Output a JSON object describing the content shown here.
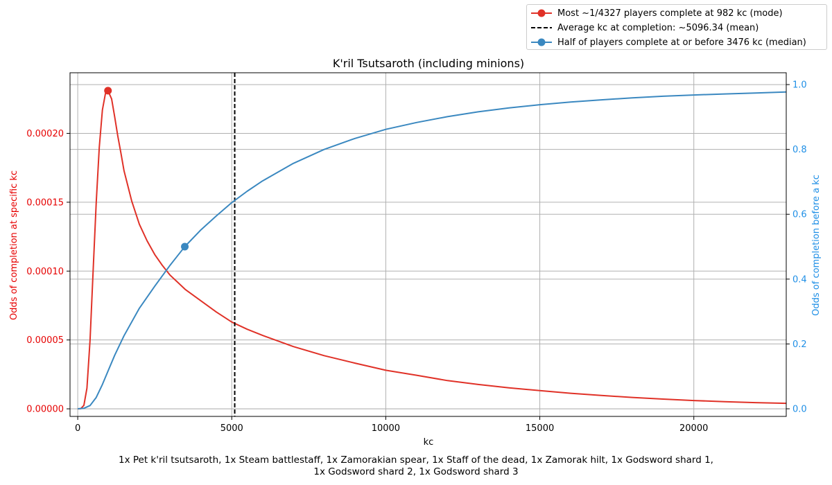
{
  "chart_data": {
    "type": "line",
    "title": "K'ril Tsutsaroth (including minions)",
    "xlabel": "kc",
    "ylabel_left": "Odds of completion at specific kc",
    "ylabel_right": "Odds of completion before a kc",
    "xlim": [
      -250,
      23000
    ],
    "ylim_left": [
      -5.5e-06,
      0.000244
    ],
    "ylim_right": [
      -0.0235,
      1.0365
    ],
    "x_ticks": [
      0,
      5000,
      10000,
      15000,
      20000
    ],
    "x_tick_labels": [
      "0",
      "5000",
      "10000",
      "15000",
      "20000"
    ],
    "y_left_ticks": [
      0,
      5e-05,
      0.0001,
      0.00015,
      0.0002
    ],
    "y_left_tick_labels": [
      "0.00000",
      "0.00005",
      "0.00010",
      "0.00015",
      "0.00020"
    ],
    "y_right_ticks": [
      0,
      0.2,
      0.4,
      0.6,
      0.8,
      1.0
    ],
    "y_right_tick_labels": [
      "0.0",
      "0.2",
      "0.4",
      "0.6",
      "0.8",
      "1.0"
    ],
    "grid": true,
    "legend_position": "top-right, outside plot",
    "series": [
      {
        "name": "Most ~1/4327 players complete at 982 kc (mode)",
        "axis": "left",
        "color": "#e03127",
        "x": [
          0,
          100,
          200,
          300,
          400,
          500,
          600,
          700,
          800,
          900,
          982,
          1100,
          1200,
          1300,
          1400,
          1500,
          1750,
          2000,
          2250,
          2500,
          2750,
          3000,
          3500,
          4000,
          4500,
          5000,
          5500,
          6000,
          7000,
          8000,
          9000,
          10000,
          11000,
          12000,
          13000,
          14000,
          15000,
          16000,
          17000,
          18000,
          19000,
          20000,
          21000,
          22000,
          23000
        ],
        "y": [
          0,
          2e-07,
          2.5e-06,
          1.5e-05,
          5e-05,
          0.0001,
          0.00015,
          0.00019,
          0.000217,
          0.000229,
          0.000231,
          0.000225,
          0.000212,
          0.000198,
          0.000186,
          0.000173,
          0.000151,
          0.000134,
          0.000122,
          0.000112,
          0.000104,
          9.7e-05,
          8.65e-05,
          7.84e-05,
          7.03e-05,
          6.3e-05,
          5.78e-05,
          5.33e-05,
          4.52e-05,
          3.86e-05,
          3.32e-05,
          2.8e-05,
          2.44e-05,
          2.05e-05,
          1.77e-05,
          1.53e-05,
          1.32e-05,
          1.13e-05,
          9.7e-06,
          8.3e-06,
          7.1e-06,
          6e-06,
          5.2e-06,
          4.5e-06,
          4e-06
        ],
        "marker": {
          "x": 982,
          "y": 0.000231
        }
      },
      {
        "name": "Average kc at completion: ~5096.34 (mean)",
        "axis": "left",
        "color": "#000000",
        "style": "dashed",
        "vline_x": 5096.34
      },
      {
        "name": "Half of players complete at or before 3476 kc (median)",
        "axis": "right",
        "color": "#3a88c0",
        "x": [
          0,
          200,
          400,
          600,
          800,
          1000,
          1200,
          1500,
          2000,
          2500,
          3000,
          3476,
          4000,
          4500,
          5000,
          5500,
          6000,
          7000,
          8000,
          9000,
          10000,
          11000,
          12000,
          13000,
          14000,
          15000,
          16000,
          17000,
          18000,
          19000,
          20000,
          21000,
          22000,
          23000
        ],
        "y": [
          0,
          0.0015,
          0.01,
          0.035,
          0.075,
          0.12,
          0.165,
          0.225,
          0.31,
          0.378,
          0.443,
          0.5,
          0.552,
          0.595,
          0.636,
          0.671,
          0.703,
          0.757,
          0.8,
          0.834,
          0.862,
          0.883,
          0.901,
          0.916,
          0.928,
          0.938,
          0.946,
          0.953,
          0.959,
          0.964,
          0.968,
          0.971,
          0.974,
          0.977
        ],
        "marker": {
          "x": 3476,
          "y": 0.5
        }
      }
    ],
    "caption_lines": [
      "1x Pet k'ril tsutsaroth, 1x Steam battlestaff, 1x Zamorakian spear, 1x Staff of the dead, 1x Zamorak hilt, 1x Godsword shard 1,",
      "1x Godsword shard 2, 1x Godsword shard 3"
    ]
  },
  "colors": {
    "left_axis": "#e60000",
    "right_axis": "#1f8fe6",
    "grid": "#b0b0b0"
  }
}
